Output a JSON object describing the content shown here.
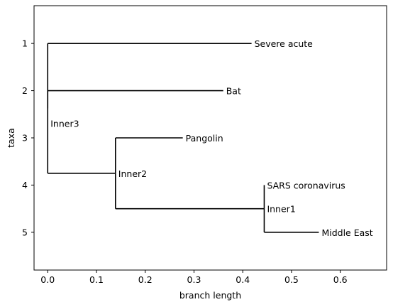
{
  "chart_data": {
    "type": "dendrogram",
    "xlabel": "branch length",
    "ylabel": "taxa",
    "xlim": [
      -0.028,
      0.695
    ],
    "ylim": [
      5.8,
      0.2
    ],
    "x_ticks": [
      0.0,
      0.1,
      0.2,
      0.3,
      0.4,
      0.5,
      0.6
    ],
    "x_tick_labels": [
      "0.0",
      "0.1",
      "0.2",
      "0.3",
      "0.4",
      "0.5",
      "0.6"
    ],
    "y_ticks": [
      1,
      2,
      3,
      4,
      5
    ],
    "y_tick_labels": [
      "1",
      "2",
      "3",
      "4",
      "5"
    ],
    "nodes": [
      {
        "id": "root",
        "label": "",
        "x": 0.0,
        "y": 3.75,
        "parent": null
      },
      {
        "id": "inner3",
        "label": "Inner3",
        "x": 0.0,
        "y": 2.375,
        "parent": "root"
      },
      {
        "id": "severe",
        "label": "Severe acute",
        "x": 0.418,
        "y": 1,
        "parent": "inner3"
      },
      {
        "id": "bat",
        "label": "Bat",
        "x": 0.36,
        "y": 2,
        "parent": "inner3"
      },
      {
        "id": "inner2",
        "label": "Inner2",
        "x": 0.139,
        "y": 3.75,
        "parent": "root"
      },
      {
        "id": "pang",
        "label": "Pangolin",
        "x": 0.277,
        "y": 3,
        "parent": "inner2"
      },
      {
        "id": "inner1",
        "label": "Inner1",
        "x": 0.444,
        "y": 4.5,
        "parent": "inner2"
      },
      {
        "id": "sars",
        "label": "SARS coronavirus",
        "x": 0.444,
        "y": 4,
        "parent": "inner1"
      },
      {
        "id": "mers",
        "label": "Middle East",
        "x": 0.556,
        "y": 5,
        "parent": "inner1"
      }
    ]
  }
}
